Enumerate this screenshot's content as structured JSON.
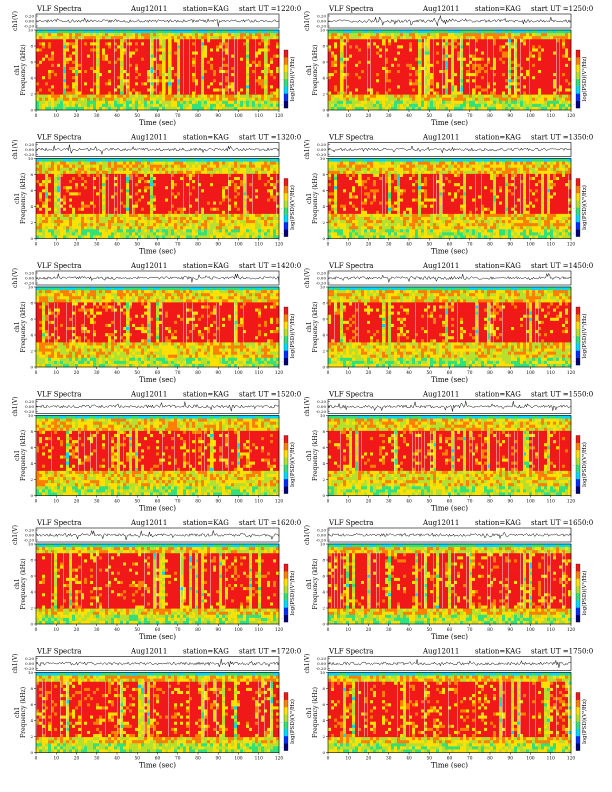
{
  "chart_data": [
    {
      "type": "heatmap",
      "title": "VLF Spectra",
      "date": "Aug12011",
      "station": "station=KAG",
      "start_ut": "start  UT  =1220:0",
      "trace_ylabel": "ch1(V)",
      "trace_ticks": [
        "0.20",
        "0.00",
        "-0.20"
      ],
      "ylabel_top": "ch1",
      "ylabel": "Frequency  (kHz)",
      "xlabel": "Time  (sec)",
      "x_ticks": [
        0,
        10,
        20,
        30,
        40,
        50,
        60,
        70,
        80,
        90,
        100,
        110,
        120
      ],
      "y_ticks": [
        0,
        2,
        4,
        6,
        8,
        10
      ],
      "xlim": [
        0,
        120
      ],
      "ylim": [
        0,
        10
      ],
      "colorbar_label": "log(PSD)(V²/Hz)",
      "colorbar_ticks": [
        ".",
        ",",
        "-"
      ],
      "colormap": [
        "#00007a",
        "#0030ff",
        "#00d8ff",
        "#33e07a",
        "#b6e030",
        "#ffe000",
        "#ff8000",
        "#f01818"
      ],
      "intense_band_khz": [
        2,
        9
      ],
      "noise_floor_line_khz": 10
    },
    {
      "type": "heatmap",
      "title": "VLF Spectra",
      "date": "Aug12011",
      "station": "station=KAG",
      "start_ut": "start  UT  =1250:0",
      "trace_ylabel": "ch1(V)",
      "trace_ticks": [
        "0.20",
        "0.00",
        "-0.20"
      ],
      "ylabel_top": "ch1",
      "ylabel": "Frequency  (kHz)",
      "xlabel": "Time  (sec)",
      "x_ticks": [
        0,
        10,
        20,
        30,
        40,
        50,
        60,
        70,
        80,
        90,
        100,
        110,
        120
      ],
      "y_ticks": [
        0,
        2,
        4,
        6,
        8,
        10
      ],
      "xlim": [
        0,
        120
      ],
      "ylim": [
        0,
        10
      ],
      "colorbar_label": "log(PSD)(V²/Hz)",
      "colorbar_ticks": [
        ".",
        ",",
        "-"
      ],
      "colormap": [
        "#00007a",
        "#0030ff",
        "#00d8ff",
        "#33e07a",
        "#b6e030",
        "#ffe000",
        "#ff8000",
        "#f01818"
      ],
      "intense_band_khz": [
        2,
        9
      ],
      "noise_floor_line_khz": 10
    },
    {
      "type": "heatmap",
      "title": "VLF Spectra",
      "date": "Aug12011",
      "station": "station=KAG",
      "start_ut": "start  UT  =1320:0",
      "trace_ylabel": "ch1(V)",
      "trace_ticks": [
        "0.20",
        "0.00",
        "-0.20"
      ],
      "ylabel_top": "ch1",
      "ylabel": "Frequency  (kHz)",
      "xlabel": "Time  (sec)",
      "x_ticks": [
        0,
        10,
        20,
        30,
        40,
        50,
        60,
        70,
        80,
        90,
        100,
        110,
        120
      ],
      "y_ticks": [
        0,
        2,
        4,
        6,
        8,
        10
      ],
      "xlim": [
        0,
        120
      ],
      "ylim": [
        0,
        10
      ],
      "colorbar_label": "log(PSD)(V²/Hz)",
      "colorbar_ticks": [
        ".",
        ",",
        "-"
      ],
      "colormap": [
        "#00007a",
        "#0030ff",
        "#00d8ff",
        "#33e07a",
        "#b6e030",
        "#ffe000",
        "#ff8000",
        "#f01818"
      ],
      "intense_band_khz": [
        3,
        8
      ],
      "noise_floor_line_khz": 10
    },
    {
      "type": "heatmap",
      "title": "VLF Spectra",
      "date": "Aug12011",
      "station": "station=KAG",
      "start_ut": "start  UT  =1350:0",
      "trace_ylabel": "ch1(V)",
      "trace_ticks": [
        "0.20",
        "0.00",
        "-0.20"
      ],
      "ylabel_top": "ch1",
      "ylabel": "Frequency  (kHz)",
      "xlabel": "Time  (sec)",
      "x_ticks": [
        0,
        10,
        20,
        30,
        40,
        50,
        60,
        70,
        80,
        90,
        100,
        110,
        120
      ],
      "y_ticks": [
        0,
        2,
        4,
        6,
        8,
        10
      ],
      "xlim": [
        0,
        120
      ],
      "ylim": [
        0,
        10
      ],
      "colorbar_label": "log(PSD)(V²/Hz)",
      "colorbar_ticks": [
        ".",
        ",",
        "-"
      ],
      "colormap": [
        "#00007a",
        "#0030ff",
        "#00d8ff",
        "#33e07a",
        "#b6e030",
        "#ffe000",
        "#ff8000",
        "#f01818"
      ],
      "intense_band_khz": [
        3,
        8
      ],
      "noise_floor_line_khz": 10
    },
    {
      "type": "heatmap",
      "title": "VLF Spectra",
      "date": "Aug12011",
      "station": "station=KAG",
      "start_ut": "start  UT  =1420:0",
      "trace_ylabel": "ch1(V)",
      "trace_ticks": [
        "0.20",
        "0.00",
        "-0.20"
      ],
      "ylabel_top": "ch1",
      "ylabel": "Frequency  (kHz)",
      "xlabel": "Time  (sec)",
      "x_ticks": [
        0,
        10,
        20,
        30,
        40,
        50,
        60,
        70,
        80,
        90,
        100,
        110,
        120
      ],
      "y_ticks": [
        0,
        2,
        4,
        6,
        8,
        10
      ],
      "xlim": [
        0,
        120
      ],
      "ylim": [
        0,
        10
      ],
      "colorbar_label": "log(PSD)(V²/Hz)",
      "colorbar_ticks": [
        ".",
        ",",
        "-"
      ],
      "colormap": [
        "#00007a",
        "#0030ff",
        "#00d8ff",
        "#33e07a",
        "#b6e030",
        "#ffe000",
        "#ff8000",
        "#f01818"
      ],
      "intense_band_khz": [
        3,
        8
      ],
      "noise_floor_line_khz": 10
    },
    {
      "type": "heatmap",
      "title": "VLF Spectra",
      "date": "Aug12011",
      "station": "station=KAG",
      "start_ut": "start  UT  =1450:0",
      "trace_ylabel": "ch1(V)",
      "trace_ticks": [
        "0.20",
        "0.00",
        "-0.20"
      ],
      "ylabel_top": "ch1",
      "ylabel": "Frequency  (kHz)",
      "xlabel": "Time  (sec)",
      "x_ticks": [
        0,
        10,
        20,
        30,
        40,
        50,
        60,
        70,
        80,
        90,
        100,
        110,
        120
      ],
      "y_ticks": [
        0,
        2,
        4,
        6,
        8,
        10
      ],
      "xlim": [
        0,
        120
      ],
      "ylim": [
        0,
        10
      ],
      "colorbar_label": "log(PSD)(V²/Hz)",
      "colorbar_ticks": [
        ".",
        ",",
        "-"
      ],
      "colormap": [
        "#00007a",
        "#0030ff",
        "#00d8ff",
        "#33e07a",
        "#b6e030",
        "#ffe000",
        "#ff8000",
        "#f01818"
      ],
      "intense_band_khz": [
        3,
        8
      ],
      "noise_floor_line_khz": 10
    },
    {
      "type": "heatmap",
      "title": "VLF Spectra",
      "date": "Aug12011",
      "station": "station=KAG",
      "start_ut": "start  UT  =1520:0",
      "trace_ylabel": "ch1(V)",
      "trace_ticks": [
        "0.20",
        "0.00",
        "-0.20"
      ],
      "ylabel_top": "ch1",
      "ylabel": "Frequency  (kHz)",
      "xlabel": "Time  (sec)",
      "x_ticks": [
        0,
        10,
        20,
        30,
        40,
        50,
        60,
        70,
        80,
        90,
        100,
        110,
        120
      ],
      "y_ticks": [
        0,
        2,
        4,
        6,
        8,
        10
      ],
      "xlim": [
        0,
        120
      ],
      "ylim": [
        0,
        10
      ],
      "colorbar_label": "log(PSD)(V²/Hz)",
      "colorbar_ticks": [
        ".",
        ",",
        "-"
      ],
      "colormap": [
        "#00007a",
        "#0030ff",
        "#00d8ff",
        "#33e07a",
        "#b6e030",
        "#ffe000",
        "#ff8000",
        "#f01818"
      ],
      "intense_band_khz": [
        3,
        8
      ],
      "noise_floor_line_khz": 10
    },
    {
      "type": "heatmap",
      "title": "VLF Spectra",
      "date": "Aug12011",
      "station": "station=KAG",
      "start_ut": "start  UT  =1550:0",
      "trace_ylabel": "ch1(V)",
      "trace_ticks": [
        "0.20",
        "0.00",
        "-0.20"
      ],
      "ylabel_top": "ch1",
      "ylabel": "Frequency  (kHz)",
      "xlabel": "Time  (sec)",
      "x_ticks": [
        0,
        10,
        20,
        30,
        40,
        50,
        60,
        70,
        80,
        90,
        100,
        110,
        120
      ],
      "y_ticks": [
        0,
        2,
        4,
        6,
        8,
        10
      ],
      "xlim": [
        0,
        120
      ],
      "ylim": [
        0,
        10
      ],
      "colorbar_label": "log(PSD)(V²/Hz)",
      "colorbar_ticks": [
        ".",
        ",",
        "-"
      ],
      "colormap": [
        "#00007a",
        "#0030ff",
        "#00d8ff",
        "#33e07a",
        "#b6e030",
        "#ffe000",
        "#ff8000",
        "#f01818"
      ],
      "intense_band_khz": [
        3,
        8
      ],
      "noise_floor_line_khz": 10
    },
    {
      "type": "heatmap",
      "title": "VLF Spectra",
      "date": "Aug12011",
      "station": "station=KAG",
      "start_ut": "start  UT  =1620:0",
      "trace_ylabel": "ch1(V)",
      "trace_ticks": [
        "0.20",
        "0.00",
        "-0.20"
      ],
      "ylabel_top": "ch1",
      "ylabel": "Frequency  (kHz)",
      "xlabel": "Time  (sec)",
      "x_ticks": [
        0,
        10,
        20,
        30,
        40,
        50,
        60,
        70,
        80,
        90,
        100,
        110,
        120
      ],
      "y_ticks": [
        0,
        2,
        4,
        6,
        8,
        10
      ],
      "xlim": [
        0,
        120
      ],
      "ylim": [
        0,
        10
      ],
      "colorbar_label": "log(PSD)(V²/Hz)",
      "colorbar_ticks": [
        ".",
        ",",
        "-"
      ],
      "colormap": [
        "#00007a",
        "#0030ff",
        "#00d8ff",
        "#33e07a",
        "#b6e030",
        "#ffe000",
        "#ff8000",
        "#f01818"
      ],
      "intense_band_khz": [
        2,
        9
      ],
      "noise_floor_line_khz": 10
    },
    {
      "type": "heatmap",
      "title": "VLF Spectra",
      "date": "Aug12011",
      "station": "station=KAG",
      "start_ut": "start  UT  =1650:0",
      "trace_ylabel": "ch1(V)",
      "trace_ticks": [
        "0.20",
        "0.00",
        "-0.20"
      ],
      "ylabel_top": "ch1",
      "ylabel": "Frequency  (kHz)",
      "xlabel": "Time  (sec)",
      "x_ticks": [
        0,
        10,
        20,
        30,
        40,
        50,
        60,
        70,
        80,
        90,
        100,
        110,
        120
      ],
      "y_ticks": [
        0,
        2,
        4,
        6,
        8,
        10
      ],
      "xlim": [
        0,
        120
      ],
      "ylim": [
        0,
        10
      ],
      "colorbar_label": "log(PSD)(V²/Hz)",
      "colorbar_ticks": [
        ".",
        ",",
        "-"
      ],
      "colormap": [
        "#00007a",
        "#0030ff",
        "#00d8ff",
        "#33e07a",
        "#b6e030",
        "#ffe000",
        "#ff8000",
        "#f01818"
      ],
      "intense_band_khz": [
        2,
        9
      ],
      "noise_floor_line_khz": 10
    },
    {
      "type": "heatmap",
      "title": "VLF Spectra",
      "date": "Aug12011",
      "station": "station=KAG",
      "start_ut": "start  UT  =1720:0",
      "trace_ylabel": "ch1(V)",
      "trace_ticks": [
        "0.20",
        "0.00",
        "-0.20"
      ],
      "ylabel_top": "ch1",
      "ylabel": "Frequency  (kHz)",
      "xlabel": "Time  (sec)",
      "x_ticks": [
        0,
        10,
        20,
        30,
        40,
        50,
        60,
        70,
        80,
        90,
        100,
        110,
        120
      ],
      "y_ticks": [
        0,
        2,
        4,
        6,
        8,
        10
      ],
      "xlim": [
        0,
        120
      ],
      "ylim": [
        0,
        10
      ],
      "colorbar_label": "log(PSD)(V²/Hz)",
      "colorbar_ticks": [
        ".",
        ",",
        "-"
      ],
      "colormap": [
        "#00007a",
        "#0030ff",
        "#00d8ff",
        "#33e07a",
        "#b6e030",
        "#ffe000",
        "#ff8000",
        "#f01818"
      ],
      "intense_band_khz": [
        2,
        9
      ],
      "noise_floor_line_khz": 10
    },
    {
      "type": "heatmap",
      "title": "VLF Spectra",
      "date": "Aug12011",
      "station": "station=KAG",
      "start_ut": "start  UT  =1750:0",
      "trace_ylabel": "ch1(V)",
      "trace_ticks": [
        "0.20",
        "0.00",
        "-0.20"
      ],
      "ylabel_top": "ch1",
      "ylabel": "Frequency  (kHz)",
      "xlabel": "Time  (sec)",
      "x_ticks": [
        0,
        10,
        20,
        30,
        40,
        50,
        60,
        70,
        80,
        90,
        100,
        110,
        120
      ],
      "y_ticks": [
        0,
        2,
        4,
        6,
        8,
        10
      ],
      "xlim": [
        0,
        120
      ],
      "ylim": [
        0,
        10
      ],
      "colorbar_label": "log(PSD)(V²/Hz)",
      "colorbar_ticks": [
        ".",
        ",",
        "-"
      ],
      "colormap": [
        "#00007a",
        "#0030ff",
        "#00d8ff",
        "#33e07a",
        "#b6e030",
        "#ffe000",
        "#ff8000",
        "#f01818"
      ],
      "intense_band_khz": [
        2,
        9
      ],
      "noise_floor_line_khz": 10
    }
  ]
}
